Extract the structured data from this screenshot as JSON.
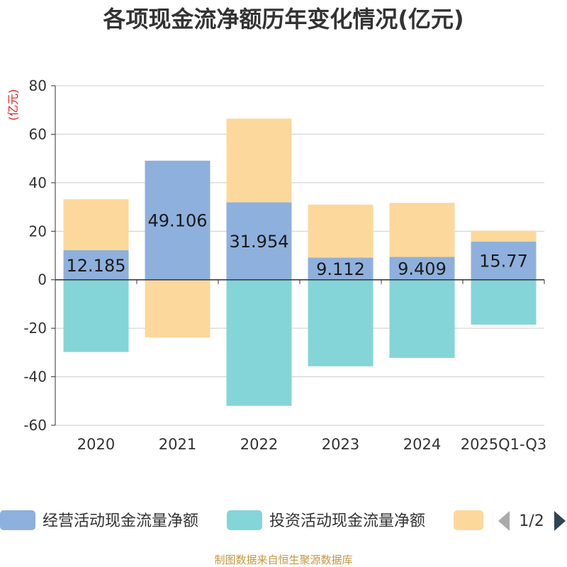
{
  "title": "各项现金流净额历年变化情况(亿元)",
  "source": "制图数据来自恒生聚源数据库",
  "colors": {
    "operating": "#8eb0dc",
    "investing": "#84d5d8",
    "financing": "#fdd89c",
    "unit": "#e02020",
    "source": "#c8963c",
    "axis": "#333333",
    "grid": "#cccccc",
    "pager_active": "#2f4554",
    "pager_inactive": "#aaaaaa"
  },
  "legend": {
    "page": "1/2",
    "prev_icon": "triangle-left-icon",
    "next_icon": "triangle-right-icon"
  },
  "chart_data": {
    "type": "bar",
    "stacked": true,
    "title": "各项现金流净额历年变化情况(亿元)",
    "ylabel": "(亿元)",
    "ylim": [
      -60,
      80
    ],
    "yticks": [
      80,
      60,
      40,
      20,
      0,
      -20,
      -40,
      -60
    ],
    "grid": true,
    "legend_position": "bottom",
    "categories": [
      "2020",
      "2021",
      "2022",
      "2023",
      "2024",
      "2025Q1-Q3"
    ],
    "series": [
      {
        "name": "经营活动现金流量净额",
        "color_key": "operating",
        "values": [
          12.185,
          49.106,
          31.954,
          9.112,
          9.409,
          15.77
        ],
        "labels": [
          "12.185",
          "49.106",
          "31.954",
          "9.112",
          "9.409",
          "15.77"
        ]
      },
      {
        "name": "投资活动现金流量净额",
        "color_key": "investing",
        "values": [
          -29.8,
          0,
          -52,
          -35.7,
          -32.2,
          -18.5
        ]
      },
      {
        "name": "",
        "color_key": "financing",
        "values": [
          21.0,
          -23.8,
          34.5,
          21.9,
          22.3,
          4.5
        ]
      }
    ]
  }
}
